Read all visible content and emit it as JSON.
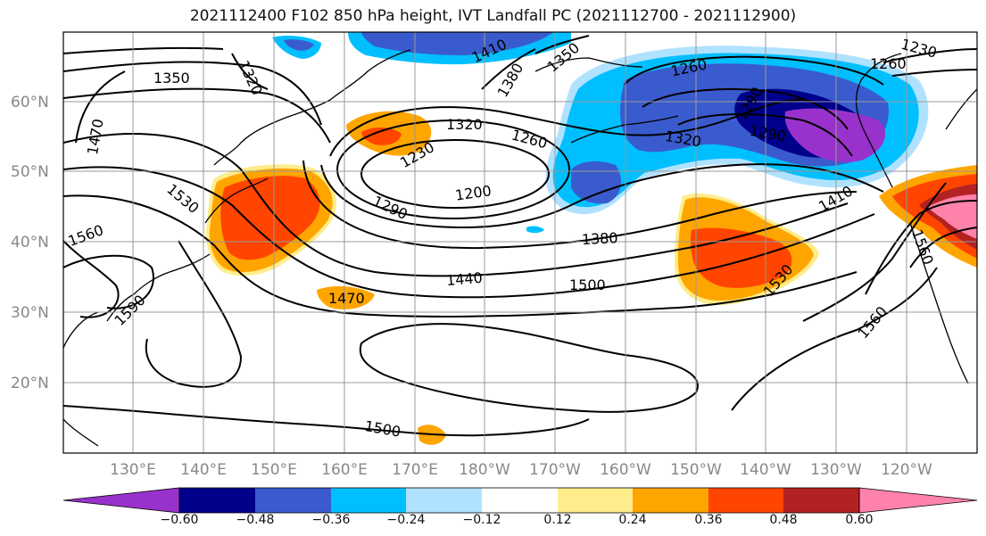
{
  "title": "2021112400 F102 850 hPa height, IVT Landfall PC (2021112700 - 2021112900)",
  "map": {
    "lat_labels": [
      "20°N",
      "30°N",
      "40°N",
      "50°N",
      "60°N"
    ],
    "lon_labels": [
      "130°E",
      "140°E",
      "150°E",
      "160°E",
      "170°E",
      "180°W",
      "170°W",
      "160°W",
      "150°W",
      "140°W",
      "130°W",
      "120°W"
    ],
    "contour_labels": [
      "1350",
      "1320",
      "1470",
      "1410",
      "1380",
      "1350",
      "1260",
      "1230",
      "1260",
      "1320",
      "1230",
      "1260",
      "1200",
      "1290",
      "1320",
      "1290",
      "1410",
      "1530",
      "1560",
      "1290",
      "1380",
      "1440",
      "1500",
      "1470",
      "1530",
      "1560",
      "1560",
      "1590",
      "1500"
    ]
  },
  "colorbar": {
    "ticks": [
      "−0.60",
      "−0.48",
      "−0.36",
      "−0.24",
      "−0.12",
      "0.12",
      "0.24",
      "0.36",
      "0.48",
      "0.60"
    ],
    "colors": [
      "#9932cc",
      "#00008b",
      "#3a5bcd",
      "#00bfff",
      "#b0e2ff",
      "#ffffff",
      "#ffec8b",
      "#ffa500",
      "#ff4500",
      "#b22222",
      "#ff82ab"
    ]
  }
}
